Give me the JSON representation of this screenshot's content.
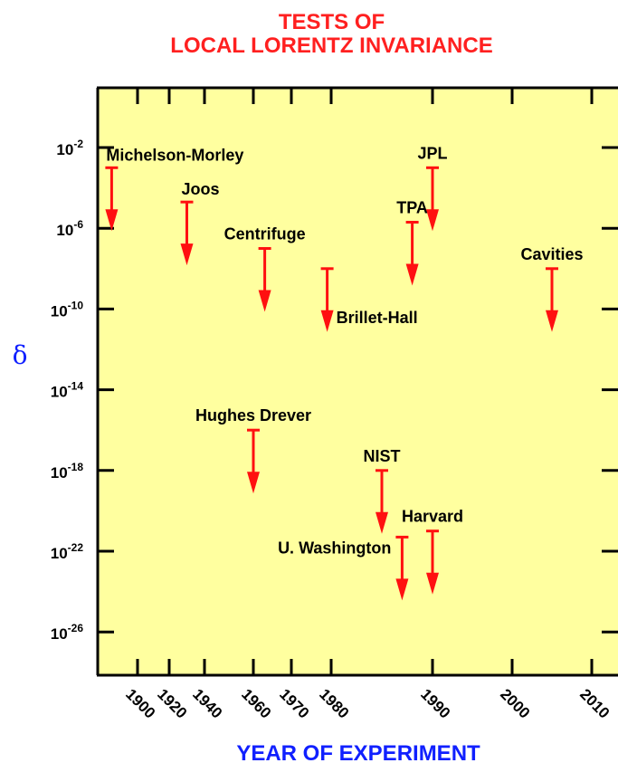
{
  "chart_data": {
    "type": "scatter",
    "title_lines": [
      "TESTS OF",
      "LOCAL LORENTZ INVARIANCE"
    ],
    "xlabel": "YEAR OF EXPERIMENT",
    "ylabel": "δ",
    "y_scale": "log",
    "x_scale": "nonuniform",
    "grid": false,
    "x_ticks": [
      "1900",
      "1920",
      "1940",
      "1960",
      "1970",
      "1980",
      "1990",
      "2000",
      "2010"
    ],
    "y_ticks": [
      {
        "base": "10",
        "exp": "-2",
        "value": 0.01
      },
      {
        "base": "10",
        "exp": "-6",
        "value": 1e-06
      },
      {
        "base": "10",
        "exp": "-10",
        "value": 1e-10
      },
      {
        "base": "10",
        "exp": "-14",
        "value": 1e-14
      },
      {
        "base": "10",
        "exp": "-18",
        "value": 1e-18
      },
      {
        "base": "10",
        "exp": "-22",
        "value": 1e-22
      },
      {
        "base": "10",
        "exp": "-26",
        "value": 1e-26
      }
    ],
    "points": [
      {
        "label": "Michelson-Morley",
        "year": 1887,
        "bound": 0.001,
        "label_pos": "above-right"
      },
      {
        "label": "Joos",
        "year": 1930,
        "bound": 2e-05,
        "label_pos": "above-right"
      },
      {
        "label": "Centrifuge",
        "year": 1963,
        "bound": 1e-07,
        "label_pos": "above"
      },
      {
        "label": "Brillet-Hall",
        "year": 1979,
        "bound": 1e-08,
        "label_pos": "right"
      },
      {
        "label": "TPA",
        "year": 1988,
        "bound": 2e-06,
        "label_pos": "above"
      },
      {
        "label": "JPL",
        "year": 1990,
        "bound": 0.001,
        "label_pos": "above"
      },
      {
        "label": "Cavities",
        "year": 2005,
        "bound": 1e-08,
        "label_pos": "above"
      },
      {
        "label": "Hughes Drever",
        "year": 1960,
        "bound": 1e-16,
        "label_pos": "above"
      },
      {
        "label": "NIST",
        "year": 1985,
        "bound": 1e-18,
        "label_pos": "above"
      },
      {
        "label": "Harvard",
        "year": 1990,
        "bound": 1e-21,
        "label_pos": "above"
      },
      {
        "label": "U. Washington",
        "year": 1987,
        "bound": 5e-22,
        "label_pos": "left"
      }
    ],
    "colors": {
      "plot_background": "#ffff9f",
      "arrow": "#ff1010",
      "title": "#ff2020",
      "axis_label": "#1020ff"
    }
  }
}
